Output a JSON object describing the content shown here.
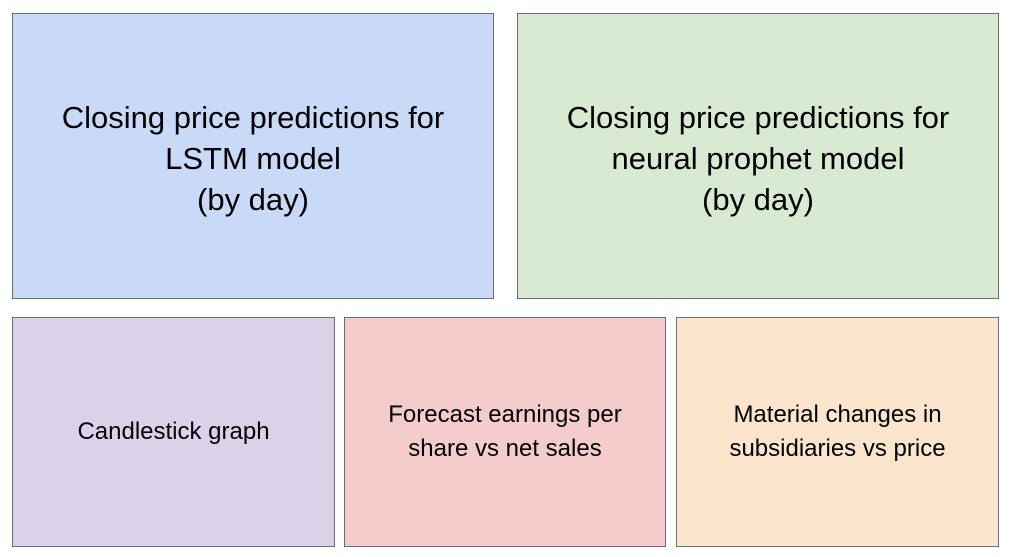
{
  "panels": [
    {
      "id": "lstm",
      "text": "Closing price predictions for\nLSTM model\n(by day)",
      "color": "#c9daf8"
    },
    {
      "id": "neural-prophet",
      "text": "Closing price predictions for\nneural prophet model\n(by day)",
      "color": "#d9ead3"
    },
    {
      "id": "candlestick",
      "text": "Candlestick graph",
      "color": "#d9d2e9"
    },
    {
      "id": "eps-vs-sales",
      "text": "Forecast earnings per\nshare vs net sales",
      "color": "#f4cccc"
    },
    {
      "id": "subsidiaries-vs-price",
      "text": "Material changes in\nsubsidiaries vs price",
      "color": "#fce5cd"
    }
  ],
  "border_color": "#6e6e6e"
}
